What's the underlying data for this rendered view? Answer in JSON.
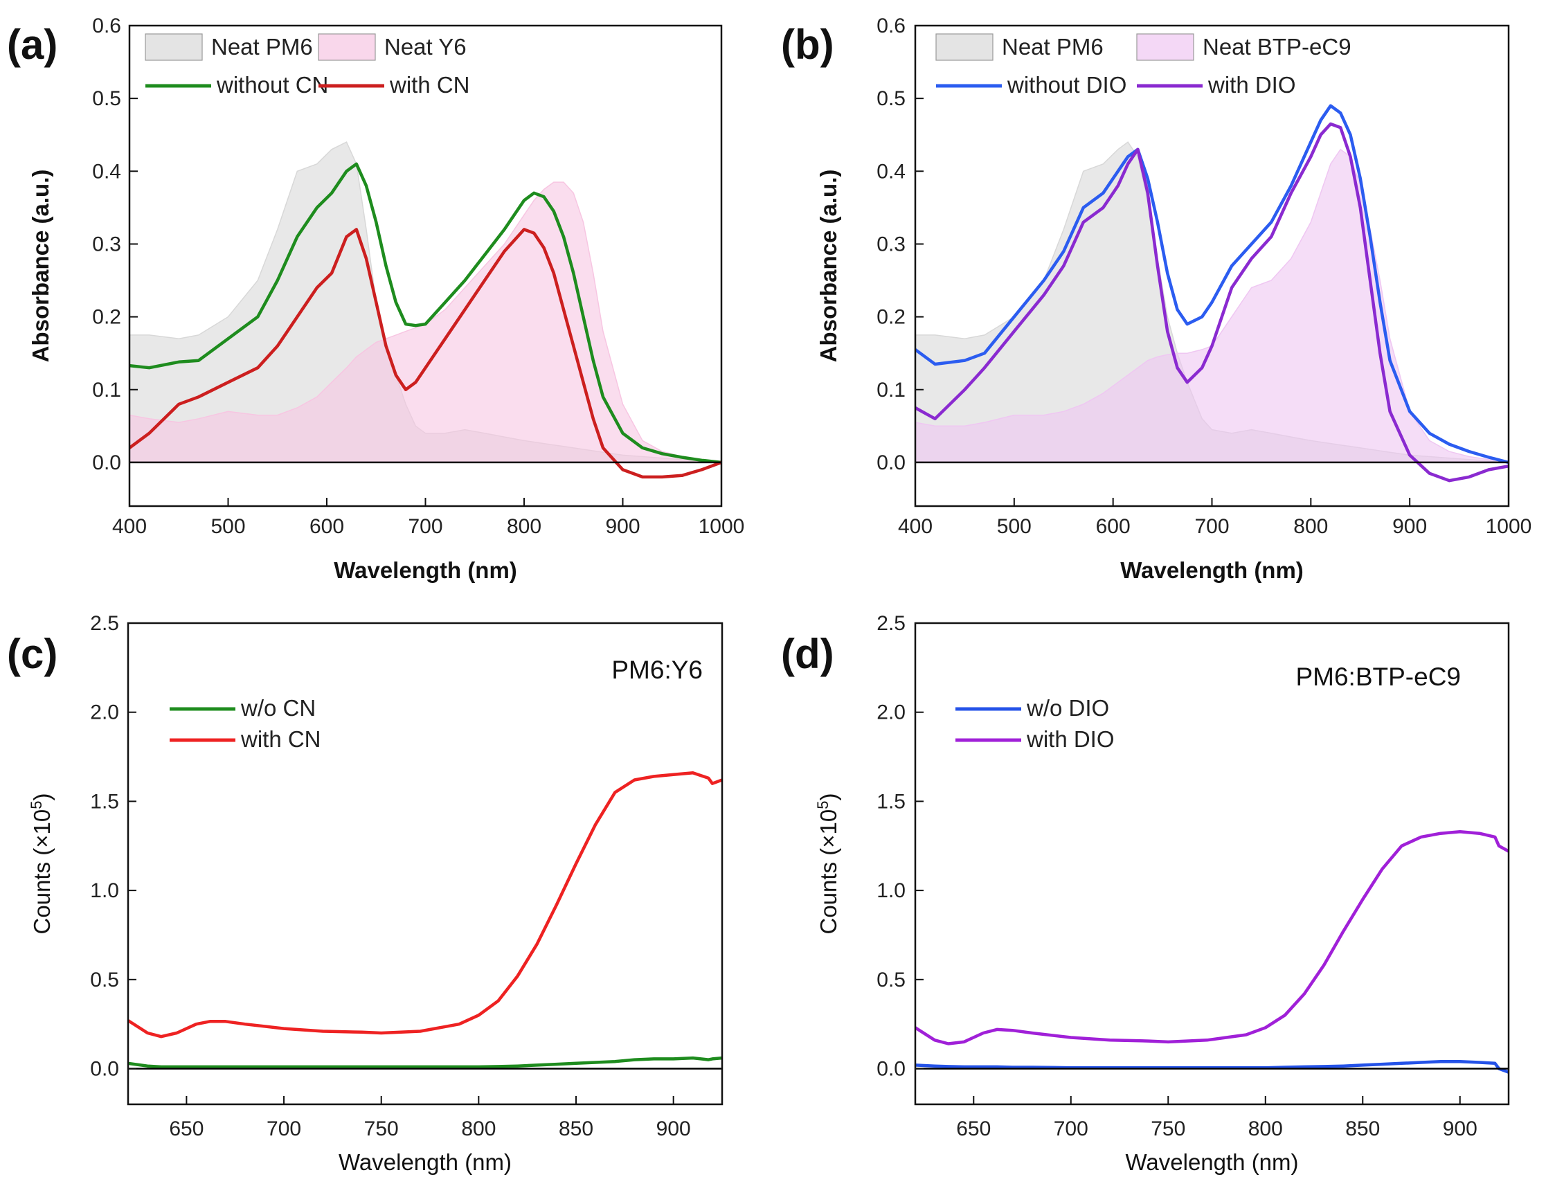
{
  "colors": {
    "neat_pm6_fill": "#d8d8d8",
    "neat_acceptor_fill": "#f7c6e2",
    "neat_btp_fill": "#efc7f2",
    "green": "#1e8c1e",
    "red": "#cc1f1f",
    "blue": "#2b5cf0",
    "purple": "#8a2ad0",
    "pl_red": "#ee2222",
    "pl_purple": "#a020d8",
    "pl_blue": "#2452e8"
  },
  "chart_data": [
    {
      "panel": "(a)",
      "type": "line",
      "xlabel": "Wavelength (nm)",
      "ylabel": "Absorbance (a.u.)",
      "xlim": [
        400,
        1000
      ],
      "ylim": [
        -0.06,
        0.6
      ],
      "xticks": [
        "400",
        "500",
        "600",
        "700",
        "800",
        "900",
        "1000"
      ],
      "yticks": [
        "0.0",
        "0.1",
        "0.2",
        "0.3",
        "0.4",
        "0.5",
        "0.6"
      ],
      "legend": [
        {
          "label": "Neat PM6",
          "kind": "area",
          "color_key": "neat_pm6_fill"
        },
        {
          "label": "Neat Y6",
          "kind": "area",
          "color_key": "neat_acceptor_fill"
        },
        {
          "label": "without CN",
          "kind": "line",
          "color_key": "green"
        },
        {
          "label": "with CN",
          "kind": "line",
          "color_key": "red"
        }
      ],
      "x": [
        400,
        420,
        450,
        470,
        500,
        530,
        550,
        570,
        590,
        605,
        620,
        630,
        640,
        650,
        660,
        670,
        680,
        690,
        700,
        720,
        740,
        760,
        780,
        800,
        810,
        820,
        830,
        840,
        850,
        860,
        870,
        880,
        900,
        920,
        940,
        960,
        980,
        1000
      ],
      "series": [
        {
          "name": "Neat PM6",
          "fill": true,
          "color_key": "neat_pm6_fill",
          "values": [
            0.175,
            0.175,
            0.17,
            0.175,
            0.2,
            0.25,
            0.32,
            0.4,
            0.41,
            0.43,
            0.44,
            0.41,
            0.32,
            0.22,
            0.16,
            0.12,
            0.08,
            0.05,
            0.04,
            0.04,
            0.045,
            0.04,
            0.035,
            0.03,
            0.028,
            0.026,
            0.024,
            0.022,
            0.02,
            0.018,
            0.016,
            0.014,
            0.01,
            0.008,
            0.006,
            0.004,
            0.002,
            0.0
          ]
        },
        {
          "name": "Neat Y6",
          "fill": true,
          "color_key": "neat_acceptor_fill",
          "values": [
            0.065,
            0.06,
            0.055,
            0.06,
            0.07,
            0.065,
            0.065,
            0.075,
            0.09,
            0.11,
            0.13,
            0.145,
            0.155,
            0.165,
            0.17,
            0.175,
            0.18,
            0.185,
            0.19,
            0.21,
            0.24,
            0.27,
            0.3,
            0.34,
            0.36,
            0.375,
            0.385,
            0.385,
            0.37,
            0.33,
            0.26,
            0.18,
            0.08,
            0.03,
            0.015,
            0.008,
            0.004,
            0.0
          ]
        },
        {
          "name": "without CN",
          "fill": false,
          "color_key": "green",
          "values": [
            0.133,
            0.13,
            0.138,
            0.14,
            0.17,
            0.2,
            0.25,
            0.31,
            0.35,
            0.37,
            0.4,
            0.41,
            0.38,
            0.33,
            0.27,
            0.22,
            0.19,
            0.188,
            0.19,
            0.22,
            0.25,
            0.285,
            0.32,
            0.36,
            0.37,
            0.365,
            0.345,
            0.31,
            0.26,
            0.2,
            0.14,
            0.09,
            0.04,
            0.02,
            0.012,
            0.007,
            0.003,
            0.0
          ]
        },
        {
          "name": "with CN",
          "fill": false,
          "color_key": "red",
          "values": [
            0.02,
            0.04,
            0.08,
            0.09,
            0.11,
            0.13,
            0.16,
            0.2,
            0.24,
            0.26,
            0.31,
            0.32,
            0.28,
            0.22,
            0.16,
            0.12,
            0.1,
            0.11,
            0.13,
            0.17,
            0.21,
            0.25,
            0.29,
            0.32,
            0.315,
            0.295,
            0.26,
            0.21,
            0.16,
            0.11,
            0.06,
            0.02,
            -0.01,
            -0.02,
            -0.02,
            -0.018,
            -0.01,
            0.0
          ]
        }
      ]
    },
    {
      "panel": "(b)",
      "type": "line",
      "xlabel": "Wavelength (nm)",
      "ylabel": "Absorbance (a.u.)",
      "xlim": [
        400,
        1000
      ],
      "ylim": [
        -0.06,
        0.6
      ],
      "xticks": [
        "400",
        "500",
        "600",
        "700",
        "800",
        "900",
        "1000"
      ],
      "yticks": [
        "0.0",
        "0.1",
        "0.2",
        "0.3",
        "0.4",
        "0.5",
        "0.6"
      ],
      "legend": [
        {
          "label": "Neat PM6",
          "kind": "area",
          "color_key": "neat_pm6_fill"
        },
        {
          "label": "Neat BTP-eC9",
          "kind": "area",
          "color_key": "neat_btp_fill"
        },
        {
          "label": "without DIO",
          "kind": "line",
          "color_key": "blue"
        },
        {
          "label": "with DIO",
          "kind": "line",
          "color_key": "purple"
        }
      ],
      "x": [
        400,
        420,
        450,
        470,
        500,
        530,
        550,
        570,
        590,
        605,
        615,
        625,
        635,
        645,
        655,
        665,
        675,
        690,
        700,
        720,
        740,
        760,
        780,
        800,
        810,
        820,
        830,
        840,
        850,
        860,
        870,
        880,
        900,
        920,
        940,
        960,
        980,
        1000
      ],
      "series": [
        {
          "name": "Neat PM6",
          "fill": true,
          "color_key": "neat_pm6_fill",
          "values": [
            0.175,
            0.175,
            0.17,
            0.175,
            0.2,
            0.25,
            0.32,
            0.4,
            0.41,
            0.43,
            0.44,
            0.42,
            0.36,
            0.28,
            0.2,
            0.15,
            0.11,
            0.06,
            0.045,
            0.04,
            0.045,
            0.04,
            0.035,
            0.03,
            0.028,
            0.026,
            0.024,
            0.022,
            0.02,
            0.018,
            0.016,
            0.014,
            0.01,
            0.008,
            0.006,
            0.004,
            0.002,
            0.0
          ]
        },
        {
          "name": "Neat BTP-eC9",
          "fill": true,
          "color_key": "neat_btp_fill",
          "values": [
            0.055,
            0.05,
            0.05,
            0.055,
            0.065,
            0.065,
            0.07,
            0.08,
            0.095,
            0.11,
            0.12,
            0.13,
            0.14,
            0.145,
            0.148,
            0.15,
            0.15,
            0.155,
            0.16,
            0.2,
            0.24,
            0.25,
            0.28,
            0.33,
            0.37,
            0.41,
            0.43,
            0.42,
            0.38,
            0.32,
            0.25,
            0.17,
            0.07,
            0.03,
            0.015,
            0.008,
            0.004,
            0.0
          ]
        },
        {
          "name": "without DIO",
          "fill": false,
          "color_key": "blue",
          "values": [
            0.155,
            0.135,
            0.14,
            0.15,
            0.2,
            0.25,
            0.29,
            0.35,
            0.37,
            0.4,
            0.42,
            0.43,
            0.39,
            0.33,
            0.26,
            0.21,
            0.19,
            0.2,
            0.22,
            0.27,
            0.3,
            0.33,
            0.38,
            0.44,
            0.47,
            0.49,
            0.48,
            0.45,
            0.39,
            0.31,
            0.22,
            0.14,
            0.07,
            0.04,
            0.025,
            0.015,
            0.007,
            0.0
          ]
        },
        {
          "name": "with DIO",
          "fill": false,
          "color_key": "purple",
          "values": [
            0.075,
            0.06,
            0.1,
            0.13,
            0.18,
            0.23,
            0.27,
            0.33,
            0.35,
            0.38,
            0.41,
            0.43,
            0.37,
            0.27,
            0.18,
            0.13,
            0.11,
            0.13,
            0.16,
            0.24,
            0.28,
            0.31,
            0.37,
            0.42,
            0.45,
            0.465,
            0.46,
            0.42,
            0.35,
            0.25,
            0.15,
            0.07,
            0.01,
            -0.015,
            -0.025,
            -0.02,
            -0.01,
            -0.005
          ]
        }
      ]
    },
    {
      "panel": "(c)",
      "type": "line",
      "title": "PM6:Y6",
      "xlabel": "Wavelength (nm)",
      "ylabel_main": "Counts (×10",
      "ylabel_sup": "5",
      "ylabel_end": ")",
      "xlim": [
        620,
        925
      ],
      "ylim": [
        -0.2,
        2.5
      ],
      "xticks": [
        "650",
        "700",
        "750",
        "800",
        "850",
        "900"
      ],
      "yticks": [
        "0.0",
        "0.5",
        "1.0",
        "1.5",
        "2.0",
        "2.5"
      ],
      "legend": [
        {
          "label": "w/o CN",
          "kind": "line",
          "color_key": "green"
        },
        {
          "label": "with CN",
          "kind": "line",
          "color_key": "pl_red"
        }
      ],
      "x": [
        620,
        630,
        637,
        645,
        655,
        662,
        670,
        680,
        700,
        720,
        740,
        750,
        770,
        790,
        800,
        810,
        820,
        830,
        840,
        850,
        860,
        870,
        880,
        890,
        900,
        910,
        918,
        920,
        925
      ],
      "series": [
        {
          "name": "w/o CN",
          "fill": false,
          "color_key": "green",
          "values": [
            0.03,
            0.015,
            0.01,
            0.01,
            0.01,
            0.01,
            0.01,
            0.01,
            0.01,
            0.01,
            0.01,
            0.01,
            0.01,
            0.01,
            0.01,
            0.012,
            0.015,
            0.02,
            0.025,
            0.03,
            0.035,
            0.04,
            0.05,
            0.055,
            0.055,
            0.06,
            0.05,
            0.055,
            0.06
          ]
        },
        {
          "name": "with CN",
          "fill": false,
          "color_key": "pl_red",
          "values": [
            0.27,
            0.2,
            0.18,
            0.2,
            0.25,
            0.265,
            0.265,
            0.25,
            0.225,
            0.21,
            0.205,
            0.2,
            0.21,
            0.25,
            0.3,
            0.38,
            0.52,
            0.7,
            0.92,
            1.15,
            1.37,
            1.55,
            1.62,
            1.64,
            1.65,
            1.66,
            1.63,
            1.6,
            1.62
          ]
        }
      ]
    },
    {
      "panel": "(d)",
      "type": "line",
      "title": "PM6:BTP-eC9",
      "xlabel": "Wavelength (nm)",
      "ylabel_main": "Counts (×10",
      "ylabel_sup": "5",
      "ylabel_end": ")",
      "xlim": [
        620,
        925
      ],
      "ylim": [
        -0.2,
        2.5
      ],
      "xticks": [
        "650",
        "700",
        "750",
        "800",
        "850",
        "900"
      ],
      "yticks": [
        "0.0",
        "0.5",
        "1.0",
        "1.5",
        "2.0",
        "2.5"
      ],
      "legend": [
        {
          "label": "w/o DIO",
          "kind": "line",
          "color_key": "pl_blue"
        },
        {
          "label": "with DIO",
          "kind": "line",
          "color_key": "pl_purple"
        }
      ],
      "x": [
        620,
        630,
        637,
        645,
        655,
        662,
        670,
        680,
        700,
        720,
        740,
        750,
        770,
        790,
        800,
        810,
        820,
        830,
        840,
        850,
        860,
        870,
        880,
        890,
        900,
        910,
        918,
        920,
        925
      ],
      "series": [
        {
          "name": "w/o DIO",
          "fill": false,
          "color_key": "pl_blue",
          "values": [
            0.02,
            0.015,
            0.012,
            0.01,
            0.01,
            0.01,
            0.008,
            0.008,
            0.005,
            0.005,
            0.005,
            0.005,
            0.005,
            0.005,
            0.005,
            0.008,
            0.01,
            0.012,
            0.015,
            0.02,
            0.025,
            0.03,
            0.035,
            0.04,
            0.04,
            0.035,
            0.03,
            0.0,
            -0.02
          ]
        },
        {
          "name": "with DIO",
          "fill": false,
          "color_key": "pl_purple",
          "values": [
            0.23,
            0.16,
            0.14,
            0.15,
            0.2,
            0.22,
            0.215,
            0.2,
            0.175,
            0.16,
            0.155,
            0.15,
            0.16,
            0.19,
            0.23,
            0.3,
            0.42,
            0.58,
            0.77,
            0.95,
            1.12,
            1.25,
            1.3,
            1.32,
            1.33,
            1.32,
            1.3,
            1.25,
            1.22
          ]
        }
      ]
    }
  ]
}
